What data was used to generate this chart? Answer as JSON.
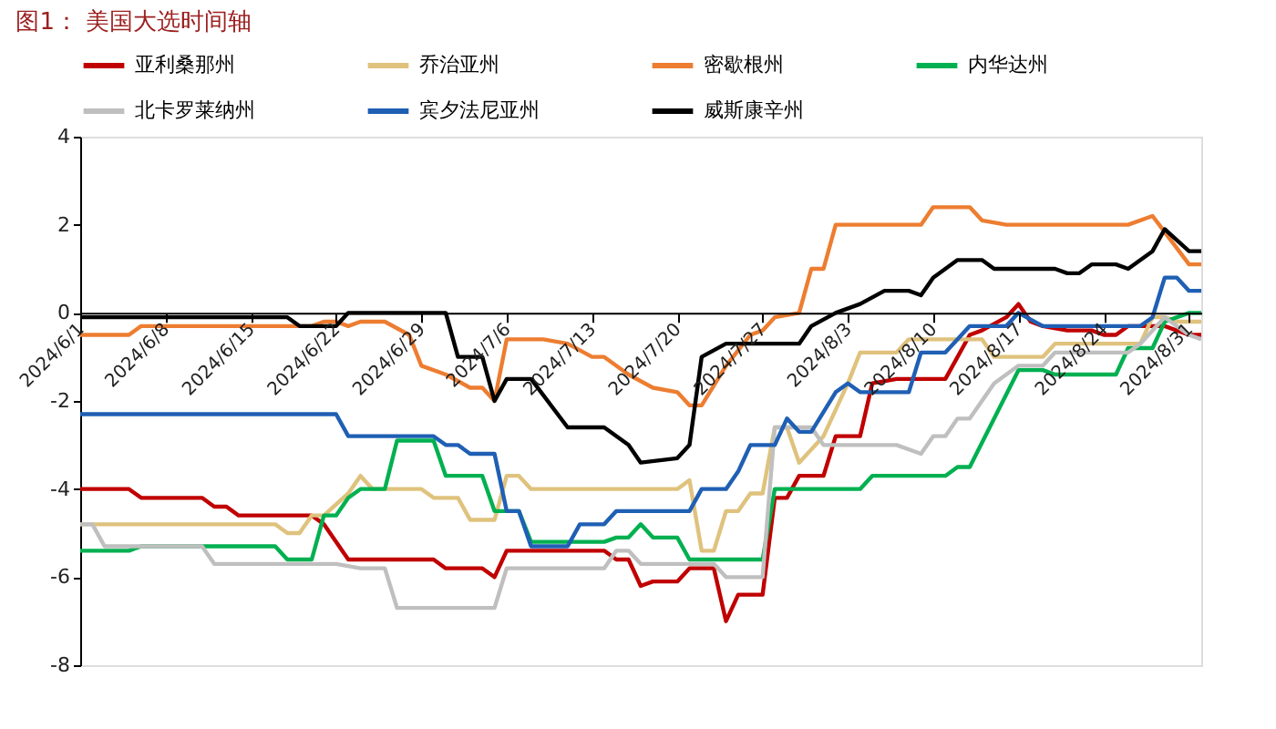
{
  "chart_data": {
    "type": "line",
    "title": "图1： 美国大选时间轴",
    "xlim": [
      "2024-06-01",
      "2024-09-01"
    ],
    "xticks": [
      {
        "value": "2024-06-01",
        "label": "2024/6/1"
      },
      {
        "value": "2024-06-08",
        "label": "2024/6/8"
      },
      {
        "value": "2024-06-15",
        "label": "2024/6/15"
      },
      {
        "value": "2024-06-22",
        "label": "2024/6/22"
      },
      {
        "value": "2024-06-29",
        "label": "2024/6/29"
      },
      {
        "value": "2024-07-06",
        "label": "2024/7/6"
      },
      {
        "value": "2024-07-13",
        "label": "2024/7/13"
      },
      {
        "value": "2024-07-20",
        "label": "2024/7/20"
      },
      {
        "value": "2024-07-27",
        "label": "2024/7/27"
      },
      {
        "value": "2024-08-03",
        "label": "2024/8/3"
      },
      {
        "value": "2024-08-10",
        "label": "2024/8/10"
      },
      {
        "value": "2024-08-17",
        "label": "2024/8/17"
      },
      {
        "value": "2024-08-24",
        "label": "2024/8/24"
      },
      {
        "value": "2024-08-31",
        "label": "2024/8/31"
      }
    ],
    "ylim": [
      -8,
      4
    ],
    "yticks": [
      -8,
      -6,
      -4,
      -2,
      0,
      2,
      4
    ],
    "grid": false,
    "legend": "top",
    "marker": "none",
    "line_style": "solid",
    "series": [
      {
        "name": "亚利桑那州",
        "color": "#c00000",
        "x": [
          "2024-06-01",
          "2024-06-05",
          "2024-06-06",
          "2024-06-11",
          "2024-06-12",
          "2024-06-13",
          "2024-06-14",
          "2024-06-20",
          "2024-06-21",
          "2024-06-23",
          "2024-06-30",
          "2024-07-01",
          "2024-07-04",
          "2024-07-05",
          "2024-07-06",
          "2024-07-14",
          "2024-07-15",
          "2024-07-16",
          "2024-07-17",
          "2024-07-18",
          "2024-07-20",
          "2024-07-21",
          "2024-07-23",
          "2024-07-24",
          "2024-07-25",
          "2024-07-27",
          "2024-07-28",
          "2024-07-29",
          "2024-07-30",
          "2024-08-01",
          "2024-08-02",
          "2024-08-04",
          "2024-08-05",
          "2024-08-07",
          "2024-08-11",
          "2024-08-13",
          "2024-08-14",
          "2024-08-16",
          "2024-08-17",
          "2024-08-18",
          "2024-08-19",
          "2024-08-21",
          "2024-08-23",
          "2024-08-24",
          "2024-08-25",
          "2024-08-26",
          "2024-08-29",
          "2024-08-31",
          "2024-09-01"
        ],
        "values": [
          -4.0,
          -4.0,
          -4.2,
          -4.2,
          -4.4,
          -4.4,
          -4.6,
          -4.6,
          -4.8,
          -5.6,
          -5.6,
          -5.8,
          -5.8,
          -6.0,
          -5.4,
          -5.4,
          -5.6,
          -5.6,
          -6.2,
          -6.1,
          -6.1,
          -5.8,
          -5.8,
          -7.0,
          -6.4,
          -6.4,
          -4.2,
          -4.2,
          -3.7,
          -3.7,
          -2.8,
          -2.8,
          -1.6,
          -1.5,
          -1.5,
          -0.5,
          -0.4,
          -0.1,
          0.2,
          -0.2,
          -0.3,
          -0.4,
          -0.4,
          -0.5,
          -0.5,
          -0.3,
          -0.3,
          -0.5,
          -0.5
        ]
      },
      {
        "name": "乔治亚州",
        "color": "#dfc27d",
        "x": [
          "2024-06-01",
          "2024-06-17",
          "2024-06-18",
          "2024-06-19",
          "2024-06-20",
          "2024-06-21",
          "2024-06-23",
          "2024-06-24",
          "2024-06-25",
          "2024-06-29",
          "2024-06-30",
          "2024-07-02",
          "2024-07-03",
          "2024-07-05",
          "2024-07-06",
          "2024-07-07",
          "2024-07-08",
          "2024-07-20",
          "2024-07-21",
          "2024-07-22",
          "2024-07-23",
          "2024-07-24",
          "2024-07-25",
          "2024-07-26",
          "2024-07-27",
          "2024-07-28",
          "2024-07-29",
          "2024-07-30",
          "2024-08-01",
          "2024-08-03",
          "2024-08-04",
          "2024-08-07",
          "2024-08-08",
          "2024-08-14",
          "2024-08-15",
          "2024-08-19",
          "2024-08-20",
          "2024-08-27",
          "2024-08-28",
          "2024-08-29",
          "2024-08-30",
          "2024-09-01"
        ],
        "values": [
          -4.8,
          -4.8,
          -5.0,
          -5.0,
          -4.6,
          -4.6,
          -4.1,
          -3.7,
          -4.0,
          -4.0,
          -4.2,
          -4.2,
          -4.7,
          -4.7,
          -3.7,
          -3.7,
          -4.0,
          -4.0,
          -3.8,
          -5.4,
          -5.4,
          -4.5,
          -4.5,
          -4.1,
          -4.1,
          -2.6,
          -2.6,
          -3.4,
          -2.8,
          -1.6,
          -0.9,
          -0.9,
          -0.6,
          -0.6,
          -1.0,
          -1.0,
          -0.7,
          -0.7,
          -0.1,
          -0.1,
          -0.2,
          -0.2
        ]
      },
      {
        "name": "密歇根州",
        "color": "#ed7d31",
        "x": [
          "2024-06-01",
          "2024-06-05",
          "2024-06-06",
          "2024-06-20",
          "2024-06-21",
          "2024-06-22",
          "2024-06-23",
          "2024-06-24",
          "2024-06-26",
          "2024-06-28",
          "2024-06-29",
          "2024-07-01",
          "2024-07-03",
          "2024-07-04",
          "2024-07-05",
          "2024-07-06",
          "2024-07-09",
          "2024-07-11",
          "2024-07-13",
          "2024-07-14",
          "2024-07-16",
          "2024-07-18",
          "2024-07-20",
          "2024-07-21",
          "2024-07-22",
          "2024-07-24",
          "2024-07-26",
          "2024-07-27",
          "2024-07-28",
          "2024-07-30",
          "2024-07-31",
          "2024-08-01",
          "2024-08-02",
          "2024-08-09",
          "2024-08-10",
          "2024-08-13",
          "2024-08-14",
          "2024-08-16",
          "2024-08-26",
          "2024-08-28",
          "2024-08-31",
          "2024-09-01"
        ],
        "values": [
          -0.5,
          -0.5,
          -0.3,
          -0.3,
          -0.2,
          -0.2,
          -0.3,
          -0.2,
          -0.2,
          -0.5,
          -1.2,
          -1.4,
          -1.7,
          -1.7,
          -2.0,
          -0.6,
          -0.6,
          -0.7,
          -1.0,
          -1.0,
          -1.4,
          -1.7,
          -1.8,
          -2.1,
          -2.1,
          -1.2,
          -0.5,
          -0.4,
          -0.1,
          0,
          1.0,
          1.0,
          2.0,
          2.0,
          2.4,
          2.4,
          2.1,
          2.0,
          2.0,
          2.2,
          1.1,
          1.1
        ]
      },
      {
        "name": "内华达州",
        "color": "#00b050",
        "x": [
          "2024-06-01",
          "2024-06-05",
          "2024-06-06",
          "2024-06-17",
          "2024-06-18",
          "2024-06-20",
          "2024-06-21",
          "2024-06-22",
          "2024-06-23",
          "2024-06-24",
          "2024-06-26",
          "2024-06-27",
          "2024-06-30",
          "2024-07-01",
          "2024-07-04",
          "2024-07-05",
          "2024-07-07",
          "2024-07-08",
          "2024-07-14",
          "2024-07-15",
          "2024-07-16",
          "2024-07-17",
          "2024-07-18",
          "2024-07-20",
          "2024-07-21",
          "2024-07-27",
          "2024-07-28",
          "2024-08-04",
          "2024-08-05",
          "2024-08-11",
          "2024-08-12",
          "2024-08-13",
          "2024-08-17",
          "2024-08-19",
          "2024-08-20",
          "2024-08-25",
          "2024-08-26",
          "2024-08-28",
          "2024-08-29",
          "2024-08-31",
          "2024-09-01"
        ],
        "values": [
          -5.4,
          -5.4,
          -5.3,
          -5.3,
          -5.6,
          -5.6,
          -4.6,
          -4.6,
          -4.2,
          -4.0,
          -4.0,
          -2.9,
          -2.9,
          -3.7,
          -3.7,
          -4.5,
          -4.5,
          -5.2,
          -5.2,
          -5.1,
          -5.1,
          -4.8,
          -5.1,
          -5.1,
          -5.6,
          -5.6,
          -4.0,
          -4.0,
          -3.7,
          -3.7,
          -3.5,
          -3.5,
          -1.3,
          -1.3,
          -1.4,
          -1.4,
          -0.8,
          -0.8,
          -0.2,
          0,
          0
        ]
      },
      {
        "name": "北卡罗莱纳州",
        "color": "#bfbfbf",
        "x": [
          "2024-06-01",
          "2024-06-02",
          "2024-06-03",
          "2024-06-11",
          "2024-06-12",
          "2024-06-22",
          "2024-06-24",
          "2024-06-26",
          "2024-06-27",
          "2024-07-05",
          "2024-07-06",
          "2024-07-14",
          "2024-07-15",
          "2024-07-16",
          "2024-07-17",
          "2024-07-23",
          "2024-07-24",
          "2024-07-27",
          "2024-07-28",
          "2024-07-31",
          "2024-08-01",
          "2024-08-07",
          "2024-08-09",
          "2024-08-10",
          "2024-08-11",
          "2024-08-12",
          "2024-08-13",
          "2024-08-15",
          "2024-08-17",
          "2024-08-19",
          "2024-08-20",
          "2024-08-26",
          "2024-08-27",
          "2024-08-29",
          "2024-08-31",
          "2024-09-01"
        ],
        "values": [
          -4.8,
          -4.8,
          -5.3,
          -5.3,
          -5.7,
          -5.7,
          -5.8,
          -5.8,
          -6.7,
          -6.7,
          -5.8,
          -5.8,
          -5.4,
          -5.4,
          -5.7,
          -5.7,
          -6.0,
          -6.0,
          -2.6,
          -2.6,
          -3.0,
          -3.0,
          -3.2,
          -2.8,
          -2.8,
          -2.4,
          -2.4,
          -1.6,
          -1.2,
          -1.2,
          -0.9,
          -0.9,
          -0.7,
          -0.1,
          -0.5,
          -0.6
        ]
      },
      {
        "name": "宾夕法尼亚州",
        "color": "#1f5fb4",
        "x": [
          "2024-06-01",
          "2024-06-22",
          "2024-06-23",
          "2024-06-30",
          "2024-07-01",
          "2024-07-02",
          "2024-07-03",
          "2024-07-05",
          "2024-07-06",
          "2024-07-07",
          "2024-07-08",
          "2024-07-11",
          "2024-07-12",
          "2024-07-14",
          "2024-07-15",
          "2024-07-21",
          "2024-07-22",
          "2024-07-24",
          "2024-07-25",
          "2024-07-26",
          "2024-07-28",
          "2024-07-29",
          "2024-07-30",
          "2024-07-31",
          "2024-08-02",
          "2024-08-03",
          "2024-08-04",
          "2024-08-08",
          "2024-08-09",
          "2024-08-11",
          "2024-08-13",
          "2024-08-16",
          "2024-08-17",
          "2024-08-19",
          "2024-08-27",
          "2024-08-28",
          "2024-08-29",
          "2024-08-30",
          "2024-08-31",
          "2024-09-01"
        ],
        "values": [
          -2.3,
          -2.3,
          -2.8,
          -2.8,
          -3.0,
          -3.0,
          -3.2,
          -3.2,
          -4.5,
          -4.5,
          -5.3,
          -5.3,
          -4.8,
          -4.8,
          -4.5,
          -4.5,
          -4.0,
          -4.0,
          -3.6,
          -3.0,
          -3.0,
          -2.4,
          -2.7,
          -2.7,
          -1.8,
          -1.6,
          -1.8,
          -1.8,
          -0.9,
          -0.9,
          -0.3,
          -0.3,
          0,
          -0.3,
          -0.3,
          -0.1,
          0.8,
          0.8,
          0.5,
          0.5
        ]
      },
      {
        "name": "威斯康辛州",
        "color": "#000000",
        "x": [
          "2024-06-01",
          "2024-06-18",
          "2024-06-19",
          "2024-06-22",
          "2024-06-23",
          "2024-07-01",
          "2024-07-02",
          "2024-07-04",
          "2024-07-05",
          "2024-07-06",
          "2024-07-08",
          "2024-07-11",
          "2024-07-14",
          "2024-07-16",
          "2024-07-17",
          "2024-07-20",
          "2024-07-21",
          "2024-07-22",
          "2024-07-24",
          "2024-07-30",
          "2024-07-31",
          "2024-08-02",
          "2024-08-04",
          "2024-08-06",
          "2024-08-08",
          "2024-08-09",
          "2024-08-10",
          "2024-08-12",
          "2024-08-14",
          "2024-08-15",
          "2024-08-20",
          "2024-08-21",
          "2024-08-22",
          "2024-08-23",
          "2024-08-25",
          "2024-08-26",
          "2024-08-28",
          "2024-08-29",
          "2024-08-31",
          "2024-09-01"
        ],
        "values": [
          -0.1,
          -0.1,
          -0.3,
          -0.3,
          0,
          0,
          -1.0,
          -1.0,
          -2.0,
          -1.5,
          -1.5,
          -2.6,
          -2.6,
          -3.0,
          -3.4,
          -3.3,
          -3.0,
          -1.0,
          -0.7,
          -0.7,
          -0.3,
          0,
          0.2,
          0.5,
          0.5,
          0.4,
          0.8,
          1.2,
          1.2,
          1.0,
          1.0,
          0.9,
          0.9,
          1.1,
          1.1,
          1.0,
          1.4,
          1.9,
          1.4,
          1.4
        ]
      }
    ]
  }
}
